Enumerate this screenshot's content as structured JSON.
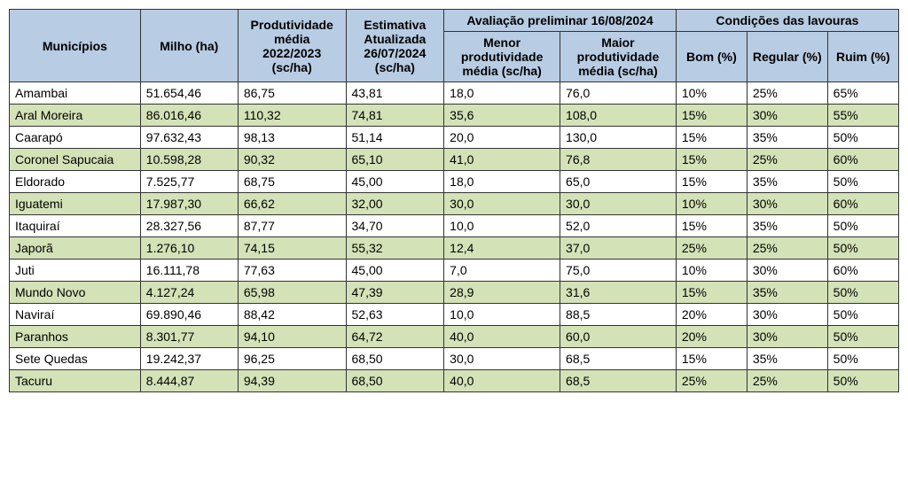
{
  "table": {
    "header": {
      "municipios": "Municípios",
      "milho": "Milho (ha)",
      "prod_media": "Produtividade média 2022/2023 (sc/ha)",
      "estimativa": "Estimativa Atualizada 26/07/2024 (sc/ha)",
      "avaliacao_group": "Avaliação preliminar 16/08/2024",
      "menor": "Menor produtividade média (sc/ha)",
      "maior": "Maior produtividade média (sc/ha)",
      "condicoes_group": "Condições das lavouras",
      "bom": "Bom (%)",
      "regular": "Regular (%)",
      "ruim": "Ruim (%)"
    },
    "colors": {
      "header_bg": "#b8cce3",
      "alt_row_bg": "#d3e2b7",
      "plain_row_bg": "#ffffff",
      "border": "#333333"
    },
    "rows": [
      {
        "municipio": "Amambai",
        "milho": "51.654,46",
        "prod": "86,75",
        "est": "43,81",
        "menor": "18,0",
        "maior": "76,0",
        "bom": "10%",
        "reg": "25%",
        "ruim": "65%"
      },
      {
        "municipio": "Aral Moreira",
        "milho": "86.016,46",
        "prod": "110,32",
        "est": "74,81",
        "menor": "35,6",
        "maior": "108,0",
        "bom": "15%",
        "reg": "30%",
        "ruim": "55%"
      },
      {
        "municipio": "Caarapó",
        "milho": "97.632,43",
        "prod": "98,13",
        "est": "51,14",
        "menor": "20,0",
        "maior": "130,0",
        "bom": "15%",
        "reg": "35%",
        "ruim": "50%"
      },
      {
        "municipio": "Coronel Sapucaia",
        "milho": "10.598,28",
        "prod": "90,32",
        "est": "65,10",
        "menor": "41,0",
        "maior": "76,8",
        "bom": "15%",
        "reg": "25%",
        "ruim": "60%"
      },
      {
        "municipio": "Eldorado",
        "milho": "7.525,77",
        "prod": "68,75",
        "est": "45,00",
        "menor": "18,0",
        "maior": "65,0",
        "bom": "15%",
        "reg": "35%",
        "ruim": "50%"
      },
      {
        "municipio": "Iguatemi",
        "milho": "17.987,30",
        "prod": "66,62",
        "est": "32,00",
        "menor": "30,0",
        "maior": "30,0",
        "bom": "10%",
        "reg": "30%",
        "ruim": "60%"
      },
      {
        "municipio": "Itaquiraí",
        "milho": "28.327,56",
        "prod": "87,77",
        "est": "34,70",
        "menor": "10,0",
        "maior": "52,0",
        "bom": "15%",
        "reg": "35%",
        "ruim": "50%"
      },
      {
        "municipio": "Japorã",
        "milho": "1.276,10",
        "prod": "74,15",
        "est": "55,32",
        "menor": "12,4",
        "maior": "37,0",
        "bom": "25%",
        "reg": "25%",
        "ruim": "50%"
      },
      {
        "municipio": "Juti",
        "milho": "16.111,78",
        "prod": "77,63",
        "est": "45,00",
        "menor": "7,0",
        "maior": "75,0",
        "bom": "10%",
        "reg": "30%",
        "ruim": "60%"
      },
      {
        "municipio": "Mundo Novo",
        "milho": "4.127,24",
        "prod": "65,98",
        "est": "47,39",
        "menor": "28,9",
        "maior": "31,6",
        "bom": "15%",
        "reg": "35%",
        "ruim": "50%"
      },
      {
        "municipio": "Naviraí",
        "milho": "69.890,46",
        "prod": "88,42",
        "est": "52,63",
        "menor": "10,0",
        "maior": "88,5",
        "bom": "20%",
        "reg": "30%",
        "ruim": "50%"
      },
      {
        "municipio": "Paranhos",
        "milho": "8.301,77",
        "prod": "94,10",
        "est": "64,72",
        "menor": "40,0",
        "maior": "60,0",
        "bom": "20%",
        "reg": "30%",
        "ruim": "50%"
      },
      {
        "municipio": "Sete Quedas",
        "milho": "19.242,37",
        "prod": "96,25",
        "est": "68,50",
        "menor": "30,0",
        "maior": "68,5",
        "bom": "15%",
        "reg": "35%",
        "ruim": "50%"
      },
      {
        "municipio": "Tacuru",
        "milho": "8.444,87",
        "prod": "94,39",
        "est": "68,50",
        "menor": "40,0",
        "maior": "68,5",
        "bom": "25%",
        "reg": "25%",
        "ruim": "50%"
      }
    ]
  }
}
